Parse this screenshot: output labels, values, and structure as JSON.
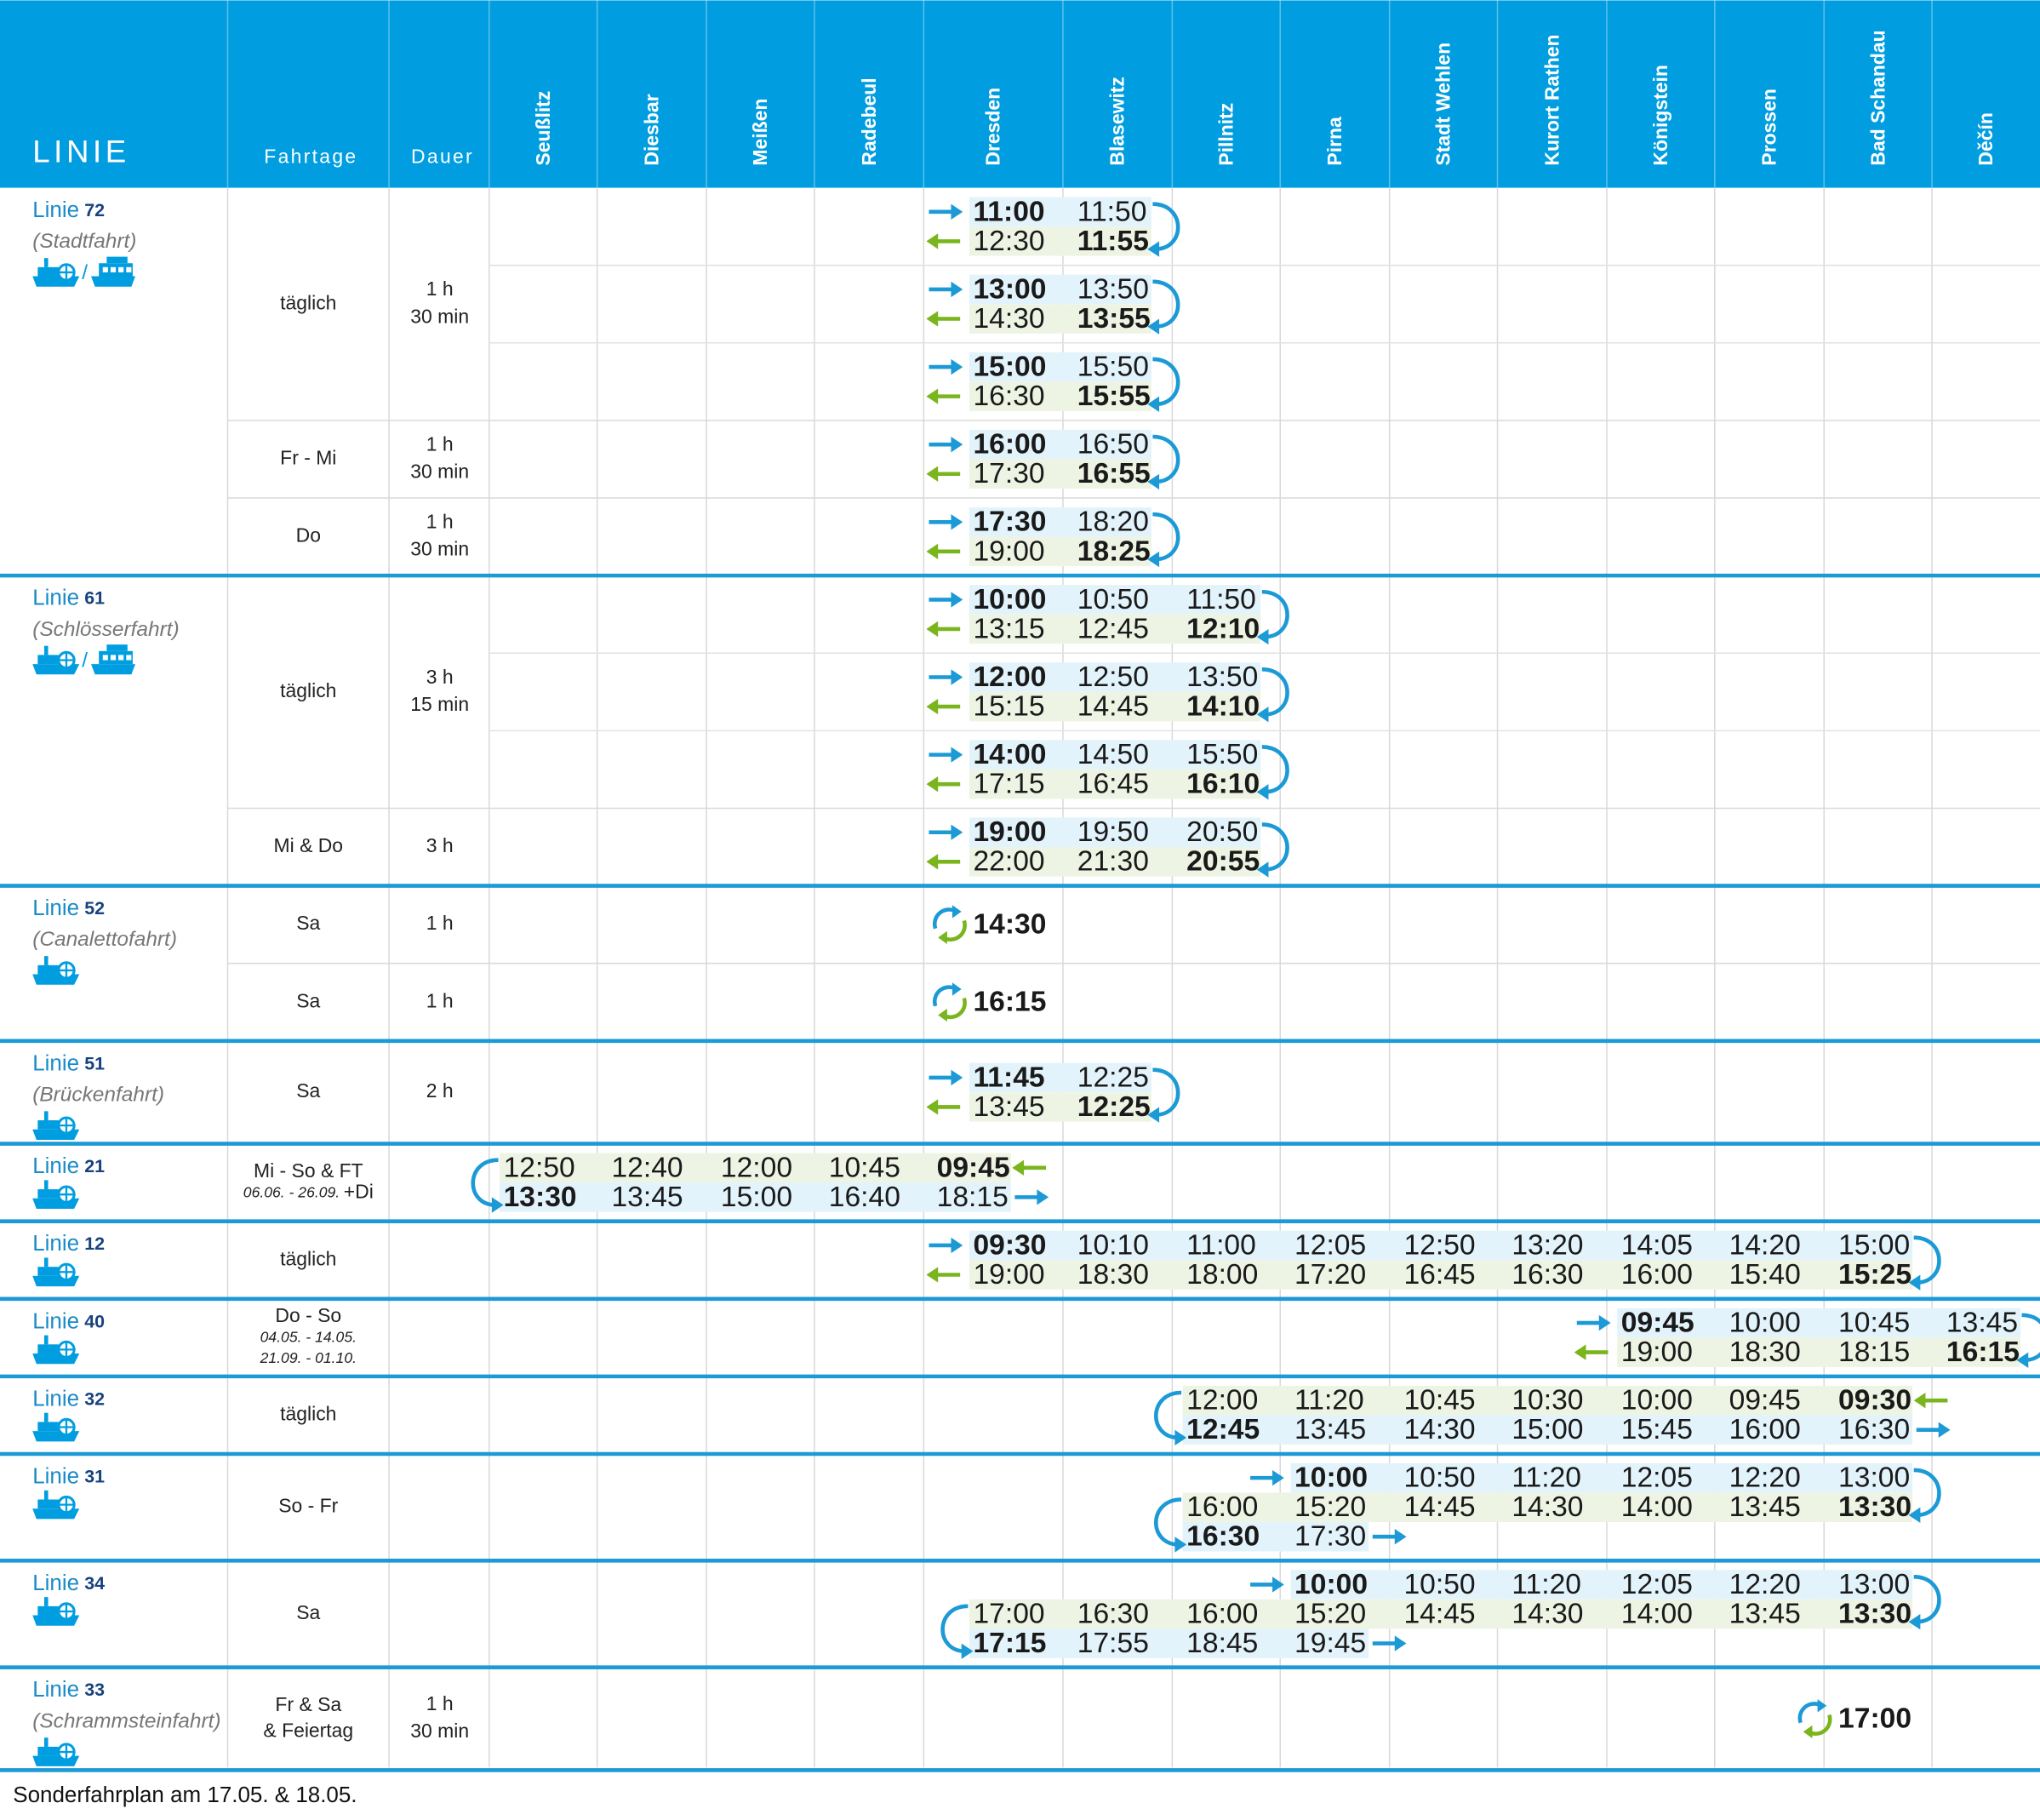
{
  "header": {
    "line": "LINIE",
    "days": "Fahrtage",
    "duration": "Dauer",
    "stations": [
      "Seußlitz",
      "Diesbar",
      "Meißen",
      "Radebeul",
      "Dresden",
      "Blasewitz",
      "Pillnitz",
      "Pirna",
      "Stadt Wehlen",
      "Kurort Rathen",
      "Königstein",
      "Prossen",
      "Bad Schandau",
      "Děčín"
    ]
  },
  "groups": [
    {
      "label": "Linie",
      "number": "72",
      "name": "(Stadtfahrt)",
      "separator": "/",
      "schedules": [
        {
          "days": [
            "täglich"
          ],
          "duration": [
            "1 h",
            "30 min"
          ],
          "trips": [
            {
              "loops": [
                "right"
              ],
              "rows": [
                {
                  "start": "Dresden",
                  "dir": "right",
                  "arrow": "start",
                  "bold": "first",
                  "times": [
                    "11:00",
                    "11:50"
                  ]
                },
                {
                  "start": "Dresden",
                  "dir": "left",
                  "arrow": "start",
                  "bold": "last",
                  "times": [
                    "12:30",
                    "11:55"
                  ]
                }
              ]
            },
            {
              "loops": [
                "right"
              ],
              "rows": [
                {
                  "start": "Dresden",
                  "dir": "right",
                  "arrow": "start",
                  "bold": "first",
                  "times": [
                    "13:00",
                    "13:50"
                  ]
                },
                {
                  "start": "Dresden",
                  "dir": "left",
                  "arrow": "start",
                  "bold": "last",
                  "times": [
                    "14:30",
                    "13:55"
                  ]
                }
              ]
            },
            {
              "loops": [
                "right"
              ],
              "rows": [
                {
                  "start": "Dresden",
                  "dir": "right",
                  "arrow": "start",
                  "bold": "first",
                  "times": [
                    "15:00",
                    "15:50"
                  ]
                },
                {
                  "start": "Dresden",
                  "dir": "left",
                  "arrow": "start",
                  "bold": "last",
                  "times": [
                    "16:30",
                    "15:55"
                  ]
                }
              ]
            }
          ]
        },
        {
          "days": [
            "Fr - Mi"
          ],
          "duration": [
            "1 h",
            "30 min"
          ],
          "trips": [
            {
              "loops": [
                "right"
              ],
              "rows": [
                {
                  "start": "Dresden",
                  "dir": "right",
                  "arrow": "start",
                  "bold": "first",
                  "times": [
                    "16:00",
                    "16:50"
                  ]
                },
                {
                  "start": "Dresden",
                  "dir": "left",
                  "arrow": "start",
                  "bold": "last",
                  "times": [
                    "17:30",
                    "16:55"
                  ]
                }
              ]
            }
          ]
        },
        {
          "days": [
            "Do"
          ],
          "duration": [
            "1 h",
            "30 min"
          ],
          "trips": [
            {
              "loops": [
                "right"
              ],
              "rows": [
                {
                  "start": "Dresden",
                  "dir": "right",
                  "arrow": "start",
                  "bold": "first",
                  "times": [
                    "17:30",
                    "18:20"
                  ]
                },
                {
                  "start": "Dresden",
                  "dir": "left",
                  "arrow": "start",
                  "bold": "last",
                  "times": [
                    "19:00",
                    "18:25"
                  ]
                }
              ]
            }
          ]
        }
      ]
    },
    {
      "label": "Linie",
      "number": "61",
      "name": "(Schlösserfahrt)",
      "separator": "/",
      "schedules": [
        {
          "days": [
            "täglich"
          ],
          "duration": [
            "3 h",
            "15 min"
          ],
          "trips": [
            {
              "loops": [
                "right"
              ],
              "rows": [
                {
                  "start": "Dresden",
                  "dir": "right",
                  "arrow": "start",
                  "bold": "first",
                  "times": [
                    "10:00",
                    "10:50",
                    "11:50"
                  ]
                },
                {
                  "start": "Dresden",
                  "dir": "left",
                  "arrow": "start",
                  "bold": "last",
                  "times": [
                    "13:15",
                    "12:45",
                    "12:10"
                  ]
                }
              ]
            },
            {
              "loops": [
                "right"
              ],
              "rows": [
                {
                  "start": "Dresden",
                  "dir": "right",
                  "arrow": "start",
                  "bold": "first",
                  "times": [
                    "12:00",
                    "12:50",
                    "13:50"
                  ]
                },
                {
                  "start": "Dresden",
                  "dir": "left",
                  "arrow": "start",
                  "bold": "last",
                  "times": [
                    "15:15",
                    "14:45",
                    "14:10"
                  ]
                }
              ]
            },
            {
              "loops": [
                "right"
              ],
              "rows": [
                {
                  "start": "Dresden",
                  "dir": "right",
                  "arrow": "start",
                  "bold": "first",
                  "times": [
                    "14:00",
                    "14:50",
                    "15:50"
                  ]
                },
                {
                  "start": "Dresden",
                  "dir": "left",
                  "arrow": "start",
                  "bold": "last",
                  "times": [
                    "17:15",
                    "16:45",
                    "16:10"
                  ]
                }
              ]
            }
          ]
        },
        {
          "days": [
            "Mi & Do"
          ],
          "duration": [
            "3 h"
          ],
          "trips": [
            {
              "loops": [
                "right"
              ],
              "rows": [
                {
                  "start": "Dresden",
                  "dir": "right",
                  "arrow": "start",
                  "bold": "first",
                  "times": [
                    "19:00",
                    "19:50",
                    "20:50"
                  ]
                },
                {
                  "start": "Dresden",
                  "dir": "left",
                  "arrow": "start",
                  "bold": "last",
                  "times": [
                    "22:00",
                    "21:30",
                    "20:55"
                  ]
                }
              ]
            }
          ]
        }
      ]
    },
    {
      "label": "Linie",
      "number": "52",
      "name": "(Canalettofahrt)",
      "schedules": [
        {
          "days": [
            "Sa"
          ],
          "duration": [
            "1 h"
          ],
          "trips": [
            {
              "round": true,
              "rows": [
                {
                  "start": "Dresden",
                  "bold": "first",
                  "times": [
                    "14:30"
                  ]
                }
              ]
            }
          ]
        },
        {
          "days": [
            "Sa"
          ],
          "duration": [
            "1 h"
          ],
          "trips": [
            {
              "round": true,
              "rows": [
                {
                  "start": "Dresden",
                  "bold": "first",
                  "times": [
                    "16:15"
                  ]
                }
              ]
            }
          ]
        }
      ]
    },
    {
      "label": "Linie",
      "number": "51",
      "name": "(Brückenfahrt)",
      "schedules": [
        {
          "days": [
            "Sa"
          ],
          "duration": [
            "2 h"
          ],
          "trips": [
            {
              "loops": [
                "right"
              ],
              "rows": [
                {
                  "start": "Dresden",
                  "dir": "right",
                  "arrow": "start",
                  "bold": "first",
                  "times": [
                    "11:45",
                    "12:25"
                  ]
                },
                {
                  "start": "Dresden",
                  "dir": "left",
                  "arrow": "start",
                  "bold": "last",
                  "times": [
                    "13:45",
                    "12:25"
                  ]
                }
              ]
            }
          ]
        }
      ]
    },
    {
      "label": "Linie",
      "number": "21",
      "schedules": [
        {
          "days": [
            "Mi - So & FT"
          ],
          "days_notes": [
            "06.06. - 26.09."
          ],
          "days_extra": "+Di",
          "trips": [
            {
              "loops": [
                "left"
              ],
              "rows": [
                {
                  "start": "Seußlitz",
                  "dir": "left",
                  "arrow": "end",
                  "bold": "last",
                  "times": [
                    "12:50",
                    "12:40",
                    "12:00",
                    "10:45",
                    "09:45"
                  ]
                },
                {
                  "start": "Seußlitz",
                  "dir": "right",
                  "arrow": "end",
                  "bold": "first",
                  "times": [
                    "13:30",
                    "13:45",
                    "15:00",
                    "16:40",
                    "18:15"
                  ]
                }
              ]
            }
          ]
        }
      ]
    },
    {
      "label": "Linie",
      "number": "12",
      "schedules": [
        {
          "days": [
            "täglich"
          ],
          "trips": [
            {
              "loops": [
                "right"
              ],
              "rows": [
                {
                  "start": "Dresden",
                  "dir": "right",
                  "arrow": "start",
                  "bold": "first",
                  "times": [
                    "09:30",
                    "10:10",
                    "11:00",
                    "12:05",
                    "12:50",
                    "13:20",
                    "14:05",
                    "14:20",
                    "15:00"
                  ]
                },
                {
                  "start": "Dresden",
                  "dir": "left",
                  "arrow": "start",
                  "bold": "last",
                  "times": [
                    "19:00",
                    "18:30",
                    "18:00",
                    "17:20",
                    "16:45",
                    "16:30",
                    "16:00",
                    "15:40",
                    "15:25"
                  ]
                }
              ]
            }
          ]
        }
      ]
    },
    {
      "label": "Linie",
      "number": "40",
      "schedules": [
        {
          "days": [
            "Do - So"
          ],
          "days_notes": [
            "04.05. - 14.05.",
            "21.09. - 01.10."
          ],
          "trips": [
            {
              "loops": [
                "right"
              ],
              "rows": [
                {
                  "start": "Königstein",
                  "dir": "right",
                  "arrow": "start",
                  "bold": "first",
                  "times": [
                    "09:45",
                    "10:00",
                    "10:45",
                    "13:45"
                  ]
                },
                {
                  "start": "Königstein",
                  "dir": "left",
                  "arrow": "start",
                  "bold": "last",
                  "times": [
                    "19:00",
                    "18:30",
                    "18:15",
                    "16:15"
                  ]
                }
              ]
            }
          ]
        }
      ]
    },
    {
      "label": "Linie",
      "number": "32",
      "schedules": [
        {
          "days": [
            "täglich"
          ],
          "trips": [
            {
              "loops": [
                "left"
              ],
              "rows": [
                {
                  "start": "Pillnitz",
                  "dir": "left",
                  "arrow": "end",
                  "bold": "last",
                  "times": [
                    "12:00",
                    "11:20",
                    "10:45",
                    "10:30",
                    "10:00",
                    "09:45",
                    "09:30"
                  ]
                },
                {
                  "start": "Pillnitz",
                  "dir": "right",
                  "arrow": "end",
                  "bold": "first",
                  "times": [
                    "12:45",
                    "13:45",
                    "14:30",
                    "15:00",
                    "15:45",
                    "16:00",
                    "16:30"
                  ]
                }
              ]
            }
          ]
        }
      ]
    },
    {
      "label": "Linie",
      "number": "31",
      "schedules": [
        {
          "days": [
            "So - Fr"
          ],
          "trips": [
            {
              "loops": [
                "right",
                "left"
              ],
              "rows": [
                {
                  "start": "Pirna",
                  "dir": "right",
                  "arrow": "start",
                  "bold": "first",
                  "times": [
                    "10:00",
                    "10:50",
                    "11:20",
                    "12:05",
                    "12:20",
                    "13:00"
                  ]
                },
                {
                  "start": "Pillnitz",
                  "dir": "left",
                  "bold": "last",
                  "times": [
                    "16:00",
                    "15:20",
                    "14:45",
                    "14:30",
                    "14:00",
                    "13:45",
                    "13:30"
                  ]
                },
                {
                  "start": "Pillnitz",
                  "dir": "right",
                  "arrow": "end",
                  "bold": "first",
                  "times": [
                    "16:30",
                    "17:30"
                  ]
                }
              ]
            }
          ]
        }
      ]
    },
    {
      "label": "Linie",
      "number": "34",
      "schedules": [
        {
          "days": [
            "Sa"
          ],
          "trips": [
            {
              "loops": [
                "right",
                "left"
              ],
              "rows": [
                {
                  "start": "Pirna",
                  "dir": "right",
                  "arrow": "start",
                  "bold": "first",
                  "times": [
                    "10:00",
                    "10:50",
                    "11:20",
                    "12:05",
                    "12:20",
                    "13:00"
                  ]
                },
                {
                  "start": "Dresden",
                  "dir": "left",
                  "bold": "last",
                  "times": [
                    "17:00",
                    "16:30",
                    "16:00",
                    "15:20",
                    "14:45",
                    "14:30",
                    "14:00",
                    "13:45",
                    "13:30"
                  ]
                },
                {
                  "start": "Dresden",
                  "dir": "right",
                  "arrow": "end",
                  "bold": "first",
                  "times": [
                    "17:15",
                    "17:55",
                    "18:45",
                    "19:45"
                  ]
                }
              ]
            }
          ]
        }
      ]
    },
    {
      "label": "Linie",
      "number": "33",
      "name": "(Schrammsteinfahrt)",
      "schedules": [
        {
          "days": [
            "Fr & Sa",
            "& Feiertag"
          ],
          "duration": [
            "1 h",
            "30 min"
          ],
          "trips": [
            {
              "round": true,
              "rows": [
                {
                  "start": "Bad Schandau",
                  "bold": "first",
                  "times": [
                    "17:00"
                  ]
                }
              ]
            }
          ]
        }
      ]
    }
  ],
  "footer": "Sonderfahrplan am 17.05. & 18.05."
}
